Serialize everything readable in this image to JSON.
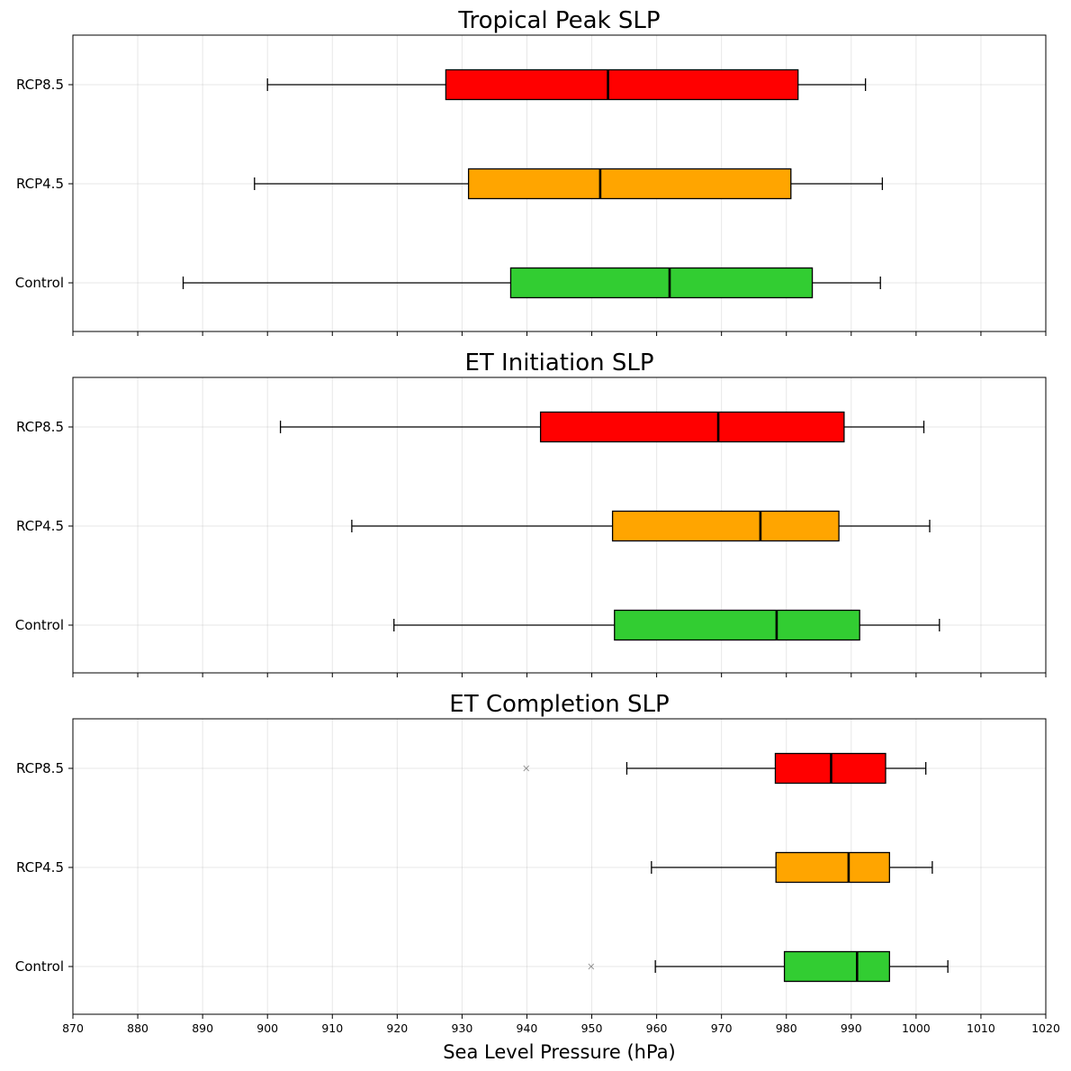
{
  "chart_data": {
    "type": "boxplot",
    "orientation": "horizontal",
    "xlabel": "Sea Level Pressure (hPa)",
    "xlim": [
      870,
      1020
    ],
    "xticks": [
      870,
      880,
      890,
      900,
      910,
      920,
      930,
      940,
      950,
      960,
      970,
      980,
      990,
      1000,
      1010,
      1020
    ],
    "grid": true,
    "categories": [
      "Control",
      "RCP4.5",
      "RCP8.5"
    ],
    "colors": {
      "Control": "#32cd32",
      "RCP4.5": "#ffa500",
      "RCP8.5": "#ff0000"
    },
    "panels": [
      {
        "title": "Tropical Peak SLP",
        "boxes": [
          {
            "category": "Control",
            "whisker_low": 887,
            "q1": 937.5,
            "median": 962,
            "q3": 984,
            "whisker_high": 994.5,
            "outliers": []
          },
          {
            "category": "RCP4.5",
            "whisker_low": 898,
            "q1": 931,
            "median": 951.3,
            "q3": 980.7,
            "whisker_high": 994.8,
            "outliers": []
          },
          {
            "category": "RCP8.5",
            "whisker_low": 900,
            "q1": 927.5,
            "median": 952.5,
            "q3": 981.8,
            "whisker_high": 992.2,
            "outliers": []
          }
        ]
      },
      {
        "title": "ET Initiation SLP",
        "boxes": [
          {
            "category": "Control",
            "whisker_low": 919.5,
            "q1": 953.5,
            "median": 978.5,
            "q3": 991.3,
            "whisker_high": 1003.6,
            "outliers": []
          },
          {
            "category": "RCP4.5",
            "whisker_low": 913,
            "q1": 953.2,
            "median": 976,
            "q3": 988.1,
            "whisker_high": 1002.1,
            "outliers": []
          },
          {
            "category": "RCP8.5",
            "whisker_low": 902,
            "q1": 942.1,
            "median": 969.5,
            "q3": 988.9,
            "whisker_high": 1001.2,
            "outliers": []
          }
        ]
      },
      {
        "title": "ET Completion SLP",
        "boxes": [
          {
            "category": "Control",
            "whisker_low": 959.8,
            "q1": 979.7,
            "median": 990.9,
            "q3": 995.9,
            "whisker_high": 1004.9,
            "outliers": [
              949.9
            ]
          },
          {
            "category": "RCP4.5",
            "whisker_low": 959.2,
            "q1": 978.4,
            "median": 989.6,
            "q3": 995.9,
            "whisker_high": 1002.5,
            "outliers": []
          },
          {
            "category": "RCP8.5",
            "whisker_low": 955.4,
            "q1": 978.3,
            "median": 986.9,
            "q3": 995.3,
            "whisker_high": 1001.5,
            "outliers": [
              939.9
            ]
          }
        ]
      }
    ]
  }
}
